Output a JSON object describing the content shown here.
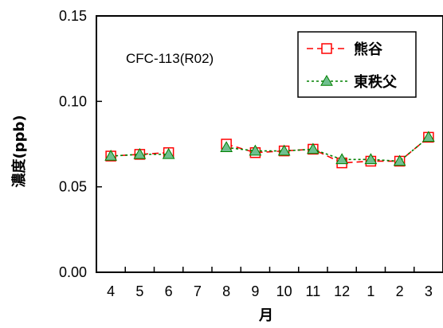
{
  "chart_data": {
    "type": "line",
    "title": "CFC-113(R02)",
    "xlabel": "月",
    "ylabel": "濃度(ppb)",
    "categories": [
      "4",
      "5",
      "6",
      "7",
      "8",
      "9",
      "10",
      "11",
      "12",
      "1",
      "2",
      "3"
    ],
    "ylim": [
      0,
      0.15
    ],
    "yticks": [
      "0.00",
      "0.05",
      "0.10",
      "0.15"
    ],
    "grid": false,
    "legend_position": "top-right",
    "series": [
      {
        "name": "熊谷",
        "color": "#ff0000",
        "line_style": "dashed",
        "marker": "square-open",
        "values": [
          0.068,
          0.069,
          0.07,
          null,
          0.075,
          0.07,
          0.071,
          0.072,
          0.064,
          0.065,
          0.065,
          0.079
        ]
      },
      {
        "name": "東秩父",
        "color": "#008000",
        "marker_fill": "#6fbf8f",
        "line_style": "dotted",
        "marker": "triangle-filled",
        "values": [
          0.068,
          0.069,
          0.069,
          null,
          0.073,
          0.071,
          0.071,
          0.072,
          0.066,
          0.066,
          0.065,
          0.079
        ]
      }
    ]
  }
}
